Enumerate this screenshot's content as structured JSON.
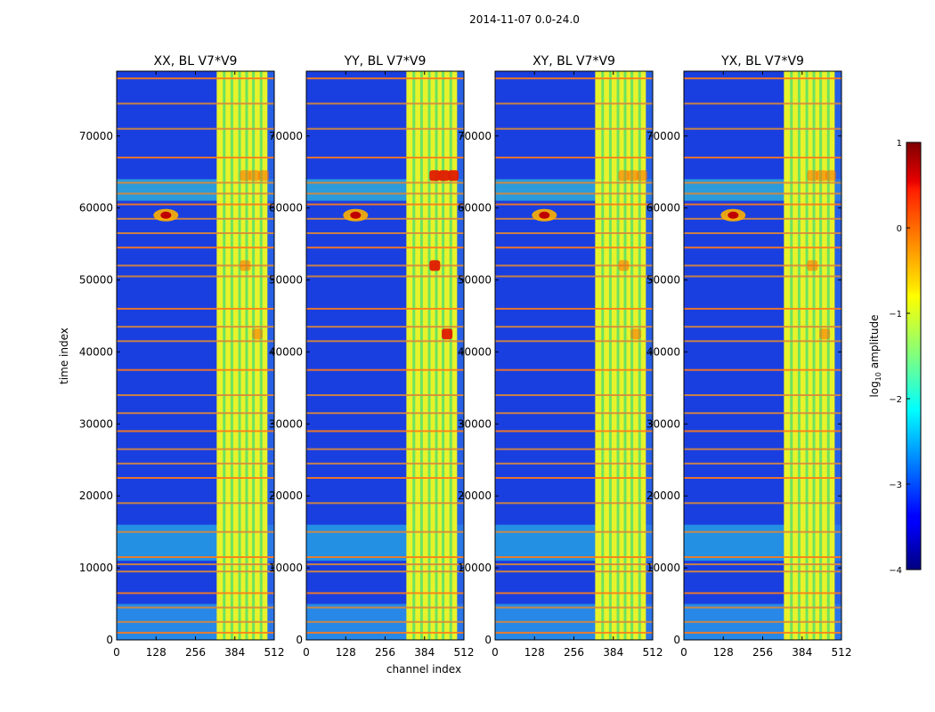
{
  "figure": {
    "suptitle": "2014-11-07 0.0-24.0",
    "xlabel": "channel index",
    "ylabel": "time index"
  },
  "chart_data": {
    "type": "heatmap",
    "panels": [
      {
        "title": "XX, BL V7*V9"
      },
      {
        "title": "YY, BL V7*V9"
      },
      {
        "title": "XY, BL V7*V9"
      },
      {
        "title": "YX, BL V7*V9"
      }
    ],
    "xlim": [
      0,
      512
    ],
    "ylim": [
      0,
      79000
    ],
    "xticks": [
      0,
      128,
      256,
      384,
      512
    ],
    "yticks": [
      0,
      10000,
      20000,
      30000,
      40000,
      50000,
      60000,
      70000
    ],
    "colorbar": {
      "label": "log10 amplitude",
      "label_main": "log",
      "label_sub": "10",
      "label_rest": " amplitude",
      "range": [
        -4,
        1
      ],
      "ticks": [
        1,
        0,
        -1,
        -2,
        -3,
        -4
      ],
      "tick_labels": [
        "1",
        "0",
        "−1",
        "−2",
        "−3",
        "−4"
      ],
      "colormap": "jet"
    },
    "bright_channel_band": [
      325,
      490
    ],
    "horizontal_lines_time": [
      1000,
      2500,
      4500,
      6500,
      9500,
      10500,
      11500,
      15000,
      19000,
      22500,
      24500,
      26500,
      29000,
      31500,
      34000,
      37500,
      41500,
      43500,
      46000,
      50500,
      52000,
      54500,
      56500,
      58500,
      60500,
      62000,
      63500,
      67000,
      71000,
      74500,
      78000
    ],
    "hotspot": {
      "channel": 160,
      "time": 59000
    }
  }
}
